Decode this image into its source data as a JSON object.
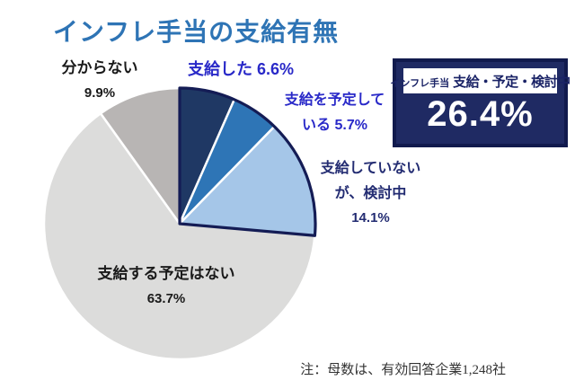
{
  "title": "インフレ手当の支給有無",
  "note": "注：母数は、有効回答企業1,248社",
  "highlight_box": {
    "tag": "インフレ手当",
    "label": "支給・予定・検討中",
    "value": "26.4%",
    "background_color": "#1F2A63",
    "border_color": "#111A4D"
  },
  "slice_labels": [
    {
      "name": "paid",
      "lines": [
        "支給した 6.6%"
      ]
    },
    {
      "name": "planning",
      "lines": [
        "支給を予定して",
        "いる 5.7%"
      ]
    },
    {
      "name": "considering",
      "lines": [
        "支給していない",
        "が、検討中",
        "14.1%"
      ]
    },
    {
      "name": "no-plan",
      "lines": [
        "支給する予定はない",
        "63.7%"
      ]
    },
    {
      "name": "dont-know",
      "lines": [
        "分からない",
        "9.9%"
      ]
    }
  ],
  "chart_data": {
    "type": "pie",
    "title": "インフレ手当の支給有無",
    "categories": [
      "支給した",
      "支給を予定している",
      "支給していないが、検討中",
      "支給する予定はない",
      "分からない"
    ],
    "values": [
      6.6,
      5.7,
      14.1,
      63.7,
      9.9
    ],
    "unit": "%",
    "colors": [
      "#1F3864",
      "#2E75B6",
      "#A5C6E8",
      "#DCDCDB",
      "#B8B5B4"
    ],
    "slice_separator_color": "#FFFFFF",
    "center": [
      200,
      249
    ],
    "radius": 151,
    "start_angle_deg": 0,
    "direction": "clockwise",
    "group_outline": {
      "label": "支給・予定・検討中",
      "slice_count": 3,
      "total": 26.4,
      "color": "#141C55"
    }
  }
}
